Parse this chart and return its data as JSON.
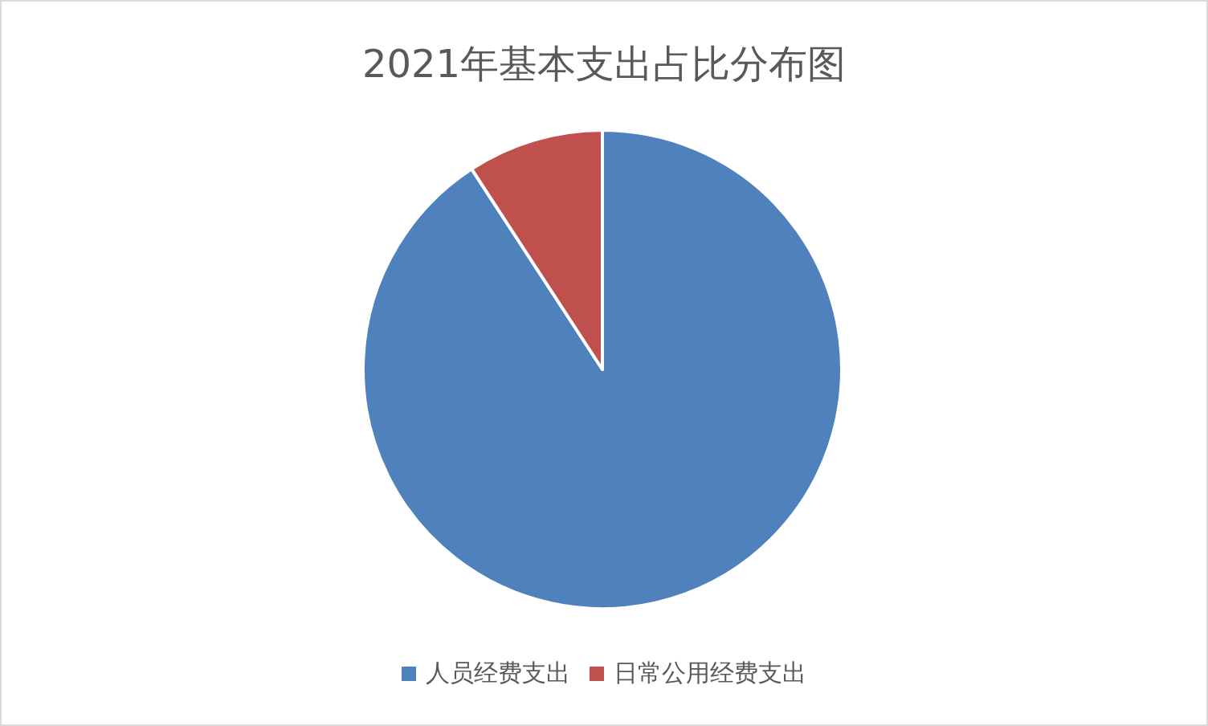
{
  "chart_data": {
    "type": "pie",
    "title": "2021年基本支出占比分布图",
    "categories": [
      "人员经费支出",
      "日常公用经费支出"
    ],
    "values": [
      90.8,
      9.2
    ],
    "colors": [
      "#4f81bd",
      "#c0504d"
    ],
    "legend": "bottom"
  }
}
